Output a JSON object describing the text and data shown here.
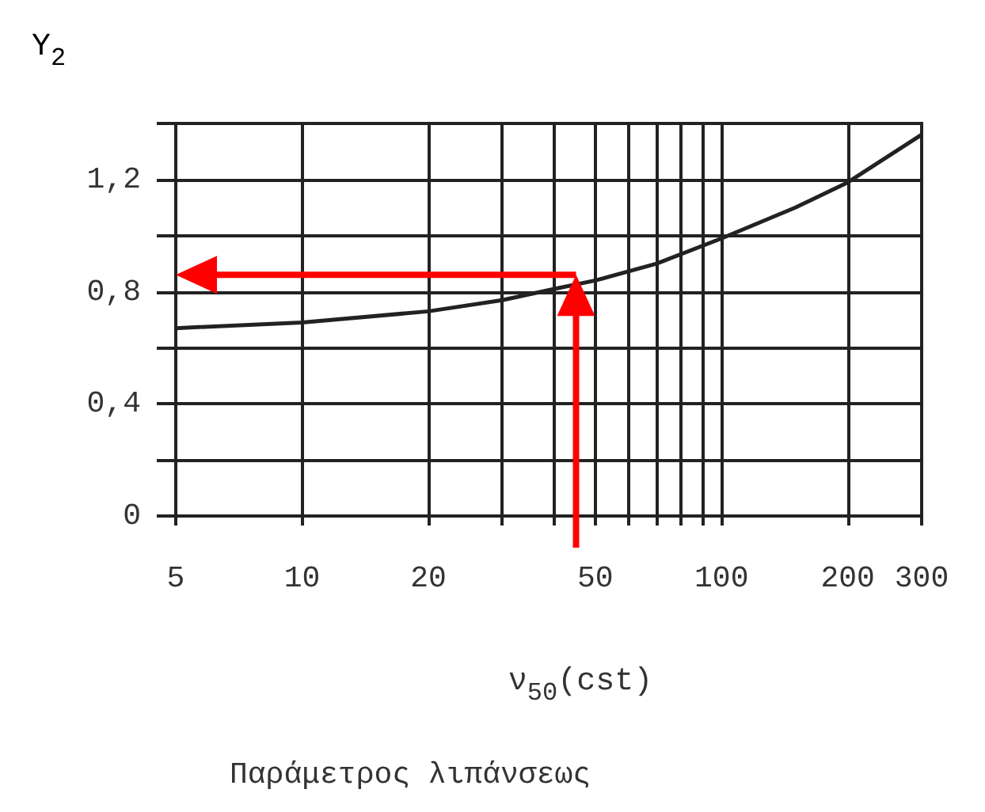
{
  "chart_data": {
    "type": "line",
    "ylabel": "Y$_{2}$",
    "xlabel": "ν$_{50}$(cst)",
    "annotations": [
      "Παράμετρος λιπάνσεως"
    ],
    "log": "x",
    "grid": true,
    "marker": "none",
    "line_style": "solid",
    "xlim": [
      5,
      300
    ],
    "xticks": [
      5,
      10,
      20,
      {
        "value": 30,
        "label": null
      },
      {
        "value": 40,
        "label": null
      },
      50,
      {
        "value": 60,
        "label": null
      },
      {
        "value": 70,
        "label": null
      },
      {
        "value": 80,
        "label": null
      },
      {
        "value": 90,
        "label": null
      },
      100,
      200,
      300
    ],
    "ylim": [
      0,
      1.4
    ],
    "yticks": [
      {
        "value": 0,
        "label": "0"
      },
      {
        "value": 0.2,
        "label": null
      },
      {
        "value": 0.4,
        "label": "0,4"
      },
      {
        "value": 0.6,
        "label": null
      },
      {
        "value": 0.8,
        "label": "0,8"
      },
      {
        "value": 1,
        "label": null
      },
      {
        "value": 1.2,
        "label": "1,2"
      },
      {
        "value": 1.4,
        "label": null
      }
    ],
    "series": [
      {
        "color": "#222222",
        "x": [
          5,
          10,
          20,
          30,
          40,
          50,
          70,
          100,
          150,
          200,
          300
        ],
        "values": [
          0.67,
          0.69,
          0.73,
          0.77,
          0.81,
          0.84,
          0.9,
          0.99,
          1.1,
          1.19,
          1.36
        ]
      }
    ],
    "ref_lines": [
      {
        "axis": "x",
        "value": 45,
        "color": "#ff0000"
      },
      {
        "axis": "y",
        "value": 0.86,
        "color": "#ff0000"
      }
    ]
  }
}
